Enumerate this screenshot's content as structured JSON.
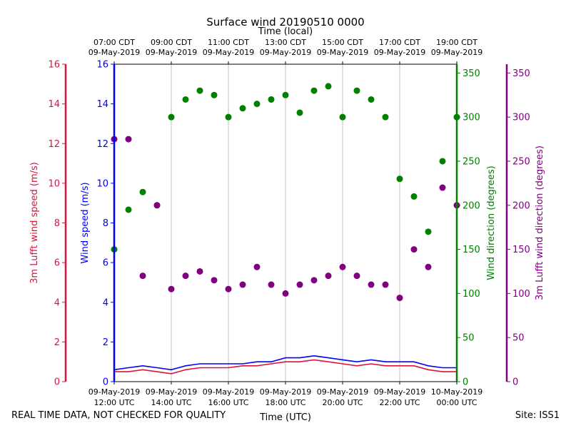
{
  "chart_data": {
    "type": "scatter",
    "title": "Surface wind 20190510 0000",
    "top_axis_label": "Time (local)",
    "bottom_axis_label": "Time (UTC)",
    "x_range_hours_utc": [
      12,
      24
    ],
    "top_ticks": [
      {
        "hour_utc": 12,
        "line1": "07:00 CDT",
        "line2": "09-May-2019"
      },
      {
        "hour_utc": 14,
        "line1": "09:00 CDT",
        "line2": "09-May-2019"
      },
      {
        "hour_utc": 16,
        "line1": "11:00 CDT",
        "line2": "09-May-2019"
      },
      {
        "hour_utc": 18,
        "line1": "13:00 CDT",
        "line2": "09-May-2019"
      },
      {
        "hour_utc": 20,
        "line1": "15:00 CDT",
        "line2": "09-May-2019"
      },
      {
        "hour_utc": 22,
        "line1": "17:00 CDT",
        "line2": "09-May-2019"
      },
      {
        "hour_utc": 24,
        "line1": "19:00 CDT",
        "line2": "09-May-2019"
      }
    ],
    "bottom_ticks": [
      {
        "hour_utc": 12,
        "line1": "09-May-2019",
        "line2": "12:00 UTC"
      },
      {
        "hour_utc": 14,
        "line1": "09-May-2019",
        "line2": "14:00 UTC"
      },
      {
        "hour_utc": 16,
        "line1": "09-May-2019",
        "line2": "16:00 UTC"
      },
      {
        "hour_utc": 18,
        "line1": "09-May-2019",
        "line2": "18:00 UTC"
      },
      {
        "hour_utc": 20,
        "line1": "09-May-2019",
        "line2": "20:00 UTC"
      },
      {
        "hour_utc": 22,
        "line1": "09-May-2019",
        "line2": "22:00 UTC"
      },
      {
        "hour_utc": 24,
        "line1": "10-May-2019",
        "line2": "00:00 UTC"
      }
    ],
    "y_axes": {
      "lufft_speed": {
        "label": "3m Lufft wind speed (m/s)",
        "range": [
          0,
          16
        ],
        "ticks": [
          0,
          2,
          4,
          6,
          8,
          10,
          12,
          14,
          16
        ],
        "color": "#dc143c"
      },
      "speed": {
        "label": "Wind speed (m/s)",
        "range": [
          0,
          16
        ],
        "ticks": [
          0,
          2,
          4,
          6,
          8,
          10,
          12,
          14,
          16
        ],
        "color": "#0000ff"
      },
      "direction": {
        "label": "Wind direction (degrees)",
        "range": [
          0,
          360
        ],
        "ticks": [
          0,
          50,
          100,
          150,
          200,
          250,
          300,
          350
        ],
        "color": "#008000"
      },
      "lufft_direction": {
        "label": "3m Lufft wind direction (degrees)",
        "range": [
          0,
          360
        ],
        "ticks": [
          0,
          50,
          100,
          150,
          200,
          250,
          300,
          350
        ],
        "color": "#800080"
      }
    },
    "series": [
      {
        "name": "Wind speed (m/s)",
        "axis": "speed",
        "kind": "line",
        "color": "#0000ff",
        "x": [
          12.0,
          12.5,
          13.0,
          13.5,
          14.0,
          14.5,
          15.0,
          15.5,
          16.0,
          16.5,
          17.0,
          17.5,
          18.0,
          18.5,
          19.0,
          19.5,
          20.0,
          20.5,
          21.0,
          21.5,
          22.0,
          22.5,
          23.0,
          23.5,
          24.0
        ],
        "y": [
          0.6,
          0.7,
          0.8,
          0.7,
          0.6,
          0.8,
          0.9,
          0.9,
          0.9,
          0.9,
          1.0,
          1.0,
          1.2,
          1.2,
          1.3,
          1.2,
          1.1,
          1.0,
          1.1,
          1.0,
          1.0,
          1.0,
          0.8,
          0.7,
          0.7
        ]
      },
      {
        "name": "3m Lufft wind speed (m/s)",
        "axis": "lufft_speed",
        "kind": "line",
        "color": "#dc143c",
        "x": [
          12.0,
          12.5,
          13.0,
          13.5,
          14.0,
          14.5,
          15.0,
          15.5,
          16.0,
          16.5,
          17.0,
          17.5,
          18.0,
          18.5,
          19.0,
          19.5,
          20.0,
          20.5,
          21.0,
          21.5,
          22.0,
          22.5,
          23.0,
          23.5,
          24.0
        ],
        "y": [
          0.5,
          0.5,
          0.6,
          0.5,
          0.4,
          0.6,
          0.7,
          0.7,
          0.7,
          0.8,
          0.8,
          0.9,
          1.0,
          1.0,
          1.1,
          1.0,
          0.9,
          0.8,
          0.9,
          0.8,
          0.8,
          0.8,
          0.6,
          0.5,
          0.5
        ]
      },
      {
        "name": "Wind direction (degrees)",
        "axis": "direction",
        "kind": "scatter",
        "color": "#008000",
        "x": [
          12.0,
          12.5,
          13.0,
          13.5,
          14.0,
          14.5,
          15.0,
          15.5,
          16.0,
          16.5,
          17.0,
          17.5,
          18.0,
          18.5,
          19.0,
          19.5,
          20.0,
          20.5,
          21.0,
          21.5,
          22.0,
          22.5,
          23.0,
          23.5,
          24.0
        ],
        "y": [
          150,
          195,
          215,
          200,
          300,
          320,
          330,
          325,
          300,
          310,
          315,
          320,
          325,
          305,
          330,
          335,
          300,
          330,
          320,
          300,
          230,
          210,
          170,
          250,
          300
        ]
      },
      {
        "name": "3m Lufft wind direction (degrees)",
        "axis": "lufft_direction",
        "kind": "scatter",
        "color": "#800080",
        "x": [
          12.0,
          12.5,
          13.0,
          13.5,
          14.0,
          14.5,
          15.0,
          15.5,
          16.0,
          16.5,
          17.0,
          17.5,
          18.0,
          18.5,
          19.0,
          19.5,
          20.0,
          20.5,
          21.0,
          21.5,
          22.0,
          22.5,
          23.0,
          23.5,
          24.0
        ],
        "y": [
          275,
          275,
          120,
          200,
          105,
          120,
          125,
          115,
          105,
          110,
          130,
          110,
          100,
          110,
          115,
          120,
          130,
          120,
          110,
          110,
          95,
          150,
          130,
          220,
          200
        ]
      }
    ]
  },
  "footer": {
    "quality_note": "REAL TIME DATA, NOT CHECKED FOR QUALITY",
    "site": "Site: ISS1"
  }
}
